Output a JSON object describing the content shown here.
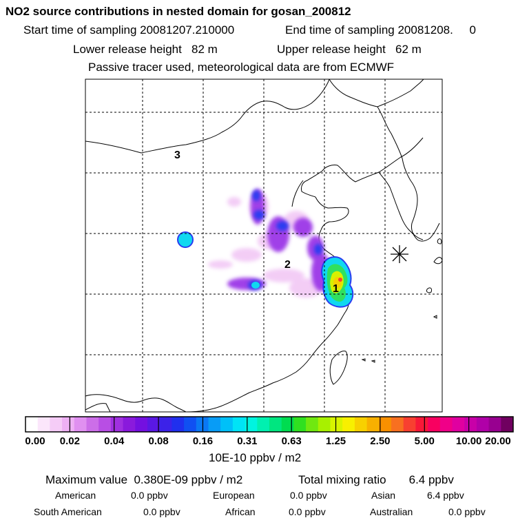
{
  "header": {
    "title": "NO2 source contributions in nested domain for gosan_200812",
    "start_label": "Start time of sampling 20081207.210000",
    "end_label": "End time of sampling 20081208.     0",
    "lower_label": "Lower release height   82 m",
    "upper_label": "Upper release height   62 m",
    "tracer_note": "Passive tracer used, meteorological data are from ECMWF"
  },
  "map": {
    "region_labels": [
      "1",
      "2",
      "3"
    ],
    "receptor_marker": "asterisk-icon"
  },
  "colorbar": {
    "ticks": [
      "0.00",
      "0.02",
      "0.04",
      "0.08",
      "0.16",
      "0.31",
      "0.63",
      "1.25",
      "2.50",
      "5.00",
      "10.00",
      "20.00"
    ],
    "unit_label": "10E-10 ppbv / m2",
    "colors": [
      "#ffffff",
      "#fbe6fb",
      "#f5ccf7",
      "#eeb0f4",
      "#e090f0",
      "#cc6ee8",
      "#b84ee4",
      "#a030e0",
      "#8a1adc",
      "#7410e0",
      "#5a18e4",
      "#3c22e8",
      "#2030ee",
      "#1050f2",
      "#0a78f4",
      "#089cf6",
      "#00c0f8",
      "#00e4f6",
      "#00f4e0",
      "#00f0b0",
      "#00e680",
      "#00dc50",
      "#30e020",
      "#70e810",
      "#a8f000",
      "#d8f400",
      "#f8f000",
      "#f8d000",
      "#f8b000",
      "#f89000",
      "#f87020",
      "#f84030",
      "#f81838",
      "#f80060",
      "#f00088",
      "#e000a0",
      "#c800a8",
      "#b000a8",
      "#980090",
      "#700060"
    ]
  },
  "footer": {
    "max_value": "Maximum value  0.380E-09 ppbv / m2",
    "total_mixing": "Total mixing ratio       6.4 ppbv",
    "american_name": "American",
    "american_value": "0.0 ppbv",
    "european_name": "European",
    "european_value": "0.0 ppbv",
    "asian_name": "Asian",
    "asian_value": "6.4 ppbv",
    "south_american_name": "South American",
    "south_american_value": "0.0 ppbv",
    "african_name": "African",
    "african_value": "0.0 ppbv",
    "australian_name": "Australian",
    "australian_value": "0.0 ppbv"
  }
}
